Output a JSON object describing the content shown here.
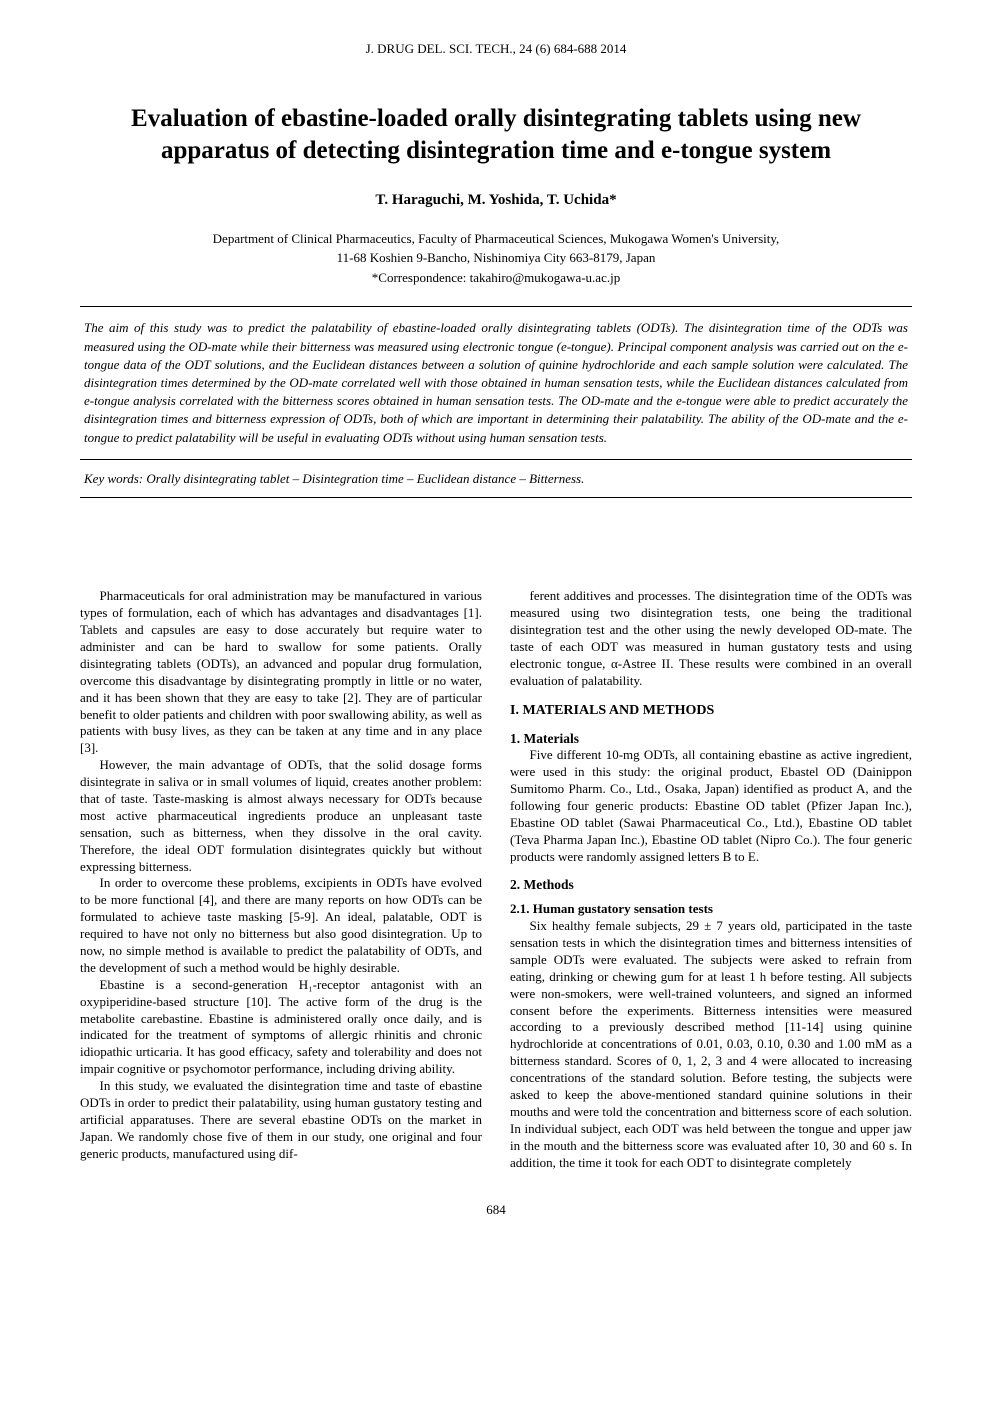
{
  "journal_header": "J. DRUG DEL. SCI. TECH., 24 (6) 684-688 2014",
  "title": "Evaluation of ebastine-loaded orally disintegrating tablets using new apparatus of detecting disintegration time and e-tongue system",
  "authors": "T. Haraguchi, M. Yoshida, T. Uchida*",
  "affiliation_line1": "Department of Clinical Pharmaceutics, Faculty of Pharmaceutical Sciences, Mukogawa Women's University,",
  "affiliation_line2": "11-68 Koshien 9-Bancho, Nishinomiya City 663-8179, Japan",
  "correspondence": "*Correspondence: takahiro@mukogawa-u.ac.jp",
  "abstract": "The aim of this study was to predict the palatability of ebastine-loaded orally disintegrating tablets (ODTs). The disintegration time of the ODTs was measured using the OD-mate while their bitterness was measured using electronic tongue (e-tongue). Principal component analysis was carried out on the e-tongue data of the ODT solutions, and the Euclidean distances between a solution of quinine hydrochloride and each sample solution were calculated. The disintegration times determined by the OD-mate correlated well with those obtained in human sensation tests, while the Euclidean distances calculated from e-tongue analysis correlated with the bitterness scores obtained in human sensation tests. The OD-mate and the e-tongue were able to predict accurately the disintegration times and bitterness expression of ODTs, both of which are important in determining their palatability. The ability of the OD-mate and the e-tongue to predict palatability will be useful in evaluating ODTs without using human sensation tests.",
  "keywords": "Key words: Orally disintegrating tablet – Disintegration time – Euclidean distance – Bitterness.",
  "left_column": {
    "p1": "Pharmaceuticals for oral administration may be manufactured in various types of formulation, each of which has advantages and disadvantages [1]. Tablets and capsules are easy to dose accurately but require water to administer and can be hard to swallow for some patients. Orally disintegrating tablets (ODTs), an advanced and popular drug formulation, overcome this disadvantage by disintegrating promptly in little or no water, and it has been shown that they are easy to take [2]. They are of particular benefit to older patients and children with poor swallowing ability, as well as patients with busy lives, as they can be taken at any time and in any place [3].",
    "p2": "However, the main advantage of ODTs, that the solid dosage forms disintegrate in saliva or in small volumes of liquid, creates another problem: that of taste. Taste-masking is almost always necessary for ODTs because most active pharmaceutical ingredients produce an unpleasant taste sensation, such as bitterness, when they dissolve in the oral cavity. Therefore, the ideal ODT formulation disintegrates quickly but without expressing bitterness.",
    "p3": "In order to overcome these problems, excipients in ODTs have evolved to be more functional [4], and there are many reports on how ODTs can be formulated to achieve taste masking [5-9]. An ideal, palatable, ODT is required to have not only no bitterness but also good disintegration. Up to now, no simple method is available to predict the palatability of ODTs, and the development of such a method would be highly desirable.",
    "p4": "Ebastine is a second-generation H₁-receptor antagonist with an oxypiperidine-based structure [10]. The active form of the drug is the metabolite carebastine. Ebastine is administered orally once daily, and is indicated for the treatment of symptoms of allergic rhinitis and chronic idiopathic urticaria. It has good efficacy, safety and tolerability and does not impair cognitive or psychomotor performance, including driving ability.",
    "p5": "In this study, we evaluated the disintegration time and taste of ebastine ODTs in order to predict their palatability, using human gustatory testing and artificial apparatuses. There are several ebastine ODTs on the market in Japan. We randomly chose five of them in our study, one original and four generic products, manufactured using dif-"
  },
  "right_column": {
    "p1": "ferent additives and processes. The disintegration time of the ODTs was measured using two disintegration tests, one being the traditional disintegration test and the other using the newly developed OD-mate. The taste of each ODT was measured in human gustatory tests and using electronic tongue, α-Astree II. These results were combined in an overall evaluation of palatability.",
    "section1_heading": "I. MATERIALS AND METHODS",
    "subsection1_heading": "1. Materials",
    "p2": "Five different 10-mg ODTs, all containing ebastine as active ingredient, were used in this study: the original product, Ebastel OD (Dainippon Sumitomo Pharm. Co., Ltd., Osaka, Japan) identified as product A, and the following four generic products: Ebastine OD tablet (Pfizer Japan Inc.), Ebastine OD tablet (Sawai Pharmaceutical Co., Ltd.), Ebastine OD tablet (Teva Pharma Japan Inc.), Ebastine OD tablet (Nipro Co.). The four generic products were randomly assigned letters B to E.",
    "subsection2_heading": "2. Methods",
    "subsubsection_heading": "2.1. Human gustatory sensation tests",
    "p3": "Six healthy female subjects, 29 ± 7 years old, participated in the taste sensation tests in which the disintegration times and bitterness intensities of sample ODTs were evaluated. The subjects were asked to refrain from eating, drinking or chewing gum for at least 1 h before testing. All subjects were non-smokers, were well-trained volunteers, and signed an informed consent before the experiments. Bitterness intensities were measured according to a previously described method [11-14] using quinine hydrochloride at concentrations of 0.01, 0.03, 0.10, 0.30 and 1.00 mM as a bitterness standard. Scores of 0, 1, 2, 3 and 4 were allocated to increasing concentrations of the standard solution. Before testing, the subjects were asked to keep the above-mentioned standard quinine solutions in their mouths and were told the concentration and bitterness score of each solution. In individual subject, each ODT was held between the tongue and upper jaw in the mouth and the bitterness score was evaluated after 10, 30 and 60 s. In addition, the time it took for each ODT to disintegrate completely"
  },
  "page_number": "684"
}
